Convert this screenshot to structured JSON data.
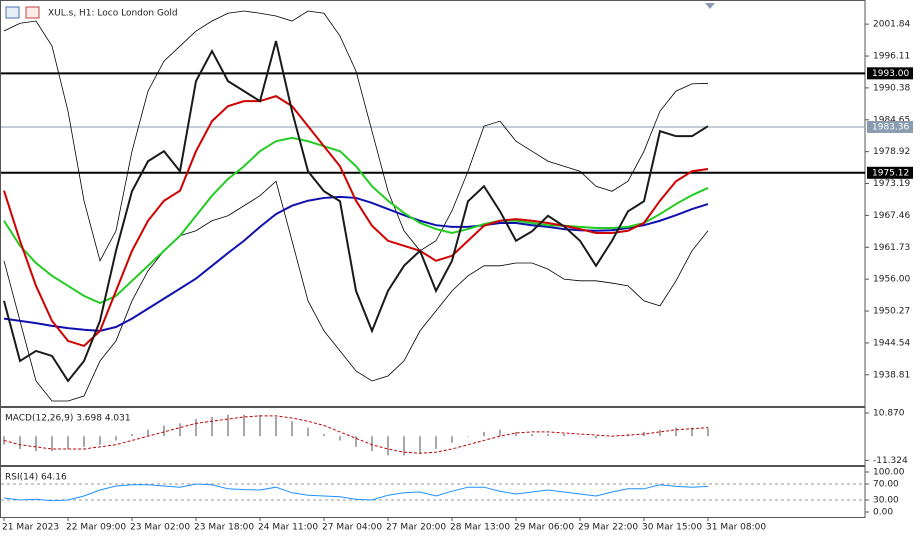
{
  "chart_data": [
    {
      "type": "line",
      "title": "XUL.s, H1: Loco London Gold",
      "categories": [
        "21 Mar 2023",
        null,
        null,
        null,
        "22 Mar 09:00",
        null,
        null,
        null,
        "23 Mar 02:00",
        null,
        null,
        null,
        "23 Mar 18:00",
        null,
        null,
        null,
        "24 Mar 11:00",
        null,
        null,
        null,
        "27 Mar 04:00",
        null,
        null,
        null,
        "27 Mar 20:00",
        null,
        null,
        null,
        "28 Mar 13:00",
        null,
        null,
        null,
        "29 Mar 06:00",
        null,
        null,
        null,
        "29 Mar 22:00",
        null,
        null,
        null,
        "30 Mar 15:00",
        null,
        null,
        null,
        "31 Mar 08:00"
      ],
      "series": [
        {
          "color": "#000000",
          "values": [
            2000.6,
            2002.0,
            2002.4,
            1997.9,
            1986.2,
            1970.1,
            1959.3,
            1964.7,
            1979.0,
            1989.8,
            1995.2,
            1997.9,
            2000.6,
            2002.4,
            2003.8,
            2004.2,
            2003.8,
            2003.3,
            2002.4,
            2004.2,
            2003.8,
            1999.7,
            1993.4,
            1982.6,
            1971.8,
            1964.7,
            1961.1,
            1962.9,
            1968.3,
            1975.4,
            1983.5,
            1984.4,
            1980.8,
            1979.0,
            1977.2,
            1976.3,
            1975.4,
            1972.7,
            1971.8,
            1973.6,
            1979.0,
            1986.2,
            1989.8,
            1991.1,
            1991.2
          ]
        },
        {
          "color": "#000000",
          "values": [
            1959.3,
            1948.5,
            1937.7,
            1934.1,
            1934.1,
            1935.0,
            1941.3,
            1944.9,
            1952.1,
            1957.5,
            1961.1,
            1963.8,
            1964.7,
            1966.5,
            1967.4,
            1969.2,
            1971.0,
            1973.6,
            1962.9,
            1952.1,
            1946.7,
            1943.1,
            1939.5,
            1937.7,
            1938.6,
            1941.3,
            1946.7,
            1950.3,
            1953.9,
            1956.6,
            1958.4,
            1958.4,
            1958.9,
            1958.9,
            1957.8,
            1956.0,
            1955.7,
            1955.7,
            1955.3,
            1954.8,
            1952.1,
            1951.2,
            1955.7,
            1961.1,
            1964.7
          ]
        },
        {
          "color": "#1010b0",
          "values": [
            1948.9,
            1948.5,
            1948.1,
            1947.6,
            1947.2,
            1946.9,
            1946.7,
            1947.4,
            1948.9,
            1950.7,
            1952.5,
            1954.3,
            1956.1,
            1958.4,
            1960.7,
            1962.9,
            1965.4,
            1967.7,
            1969.2,
            1970.1,
            1970.6,
            1970.8,
            1970.6,
            1969.7,
            1968.6,
            1967.5,
            1966.5,
            1965.7,
            1965.4,
            1965.4,
            1965.7,
            1966.1,
            1966.1,
            1965.7,
            1965.4,
            1965.0,
            1964.8,
            1964.7,
            1964.8,
            1965.2,
            1965.7,
            1966.5,
            1967.5,
            1968.6,
            1969.5
          ]
        },
        {
          "color": "#22cc22",
          "values": [
            1966.5,
            1962.0,
            1958.9,
            1956.6,
            1954.8,
            1953.0,
            1951.7,
            1953.0,
            1955.7,
            1958.4,
            1961.1,
            1963.8,
            1967.4,
            1971.0,
            1974.0,
            1976.3,
            1979.0,
            1980.8,
            1981.4,
            1980.8,
            1979.9,
            1979.0,
            1976.3,
            1972.7,
            1970.1,
            1967.9,
            1966.1,
            1965.0,
            1964.3,
            1965.0,
            1965.9,
            1966.5,
            1966.5,
            1966.1,
            1965.7,
            1965.6,
            1965.4,
            1965.2,
            1965.2,
            1965.4,
            1966.1,
            1967.7,
            1969.5,
            1971.1,
            1972.4
          ]
        },
        {
          "color": "#d00000",
          "values": [
            1971.9,
            1962.9,
            1954.8,
            1948.5,
            1944.9,
            1944.0,
            1946.7,
            1953.9,
            1961.1,
            1966.5,
            1970.1,
            1971.9,
            1979.0,
            1984.4,
            1987.1,
            1988.0,
            1988.0,
            1988.9,
            1987.1,
            1983.5,
            1979.9,
            1976.3,
            1970.1,
            1965.6,
            1962.9,
            1962.0,
            1961.1,
            1959.3,
            1960.2,
            1962.9,
            1965.6,
            1966.5,
            1966.8,
            1966.5,
            1966.1,
            1965.6,
            1965.0,
            1964.3,
            1964.3,
            1964.7,
            1966.1,
            1970.1,
            1973.6,
            1975.4,
            1975.8
          ]
        },
        {
          "color": "#1a1a1a",
          "values": [
            1952.1,
            1941.3,
            1943.1,
            1942.2,
            1937.7,
            1941.3,
            1948.5,
            1961.1,
            1971.8,
            1977.2,
            1979.0,
            1975.4,
            1991.6,
            1997.0,
            1991.6,
            1989.8,
            1988.0,
            1998.8,
            1986.2,
            1975.4,
            1971.8,
            1970.0,
            1953.9,
            1946.7,
            1953.9,
            1958.4,
            1961.1,
            1953.9,
            1959.3,
            1970.0,
            1972.7,
            1968.2,
            1962.9,
            1964.6,
            1967.4,
            1965.5,
            1962.9,
            1958.4,
            1962.9,
            1968.2,
            1970.0,
            1982.6,
            1981.7,
            1981.7,
            1983.5
          ]
        }
      ],
      "levels": [
        {
          "value": 1993,
          "label": "1993.00",
          "color": "#000000"
        },
        {
          "value": 1983.36,
          "label": "1983.36",
          "color": "#8a9bb0"
        },
        {
          "value": 1975.12,
          "label": "1975.12",
          "color": "#000000"
        }
      ],
      "ylim": [
        1933.2,
        2006.0
      ],
      "yticks": [
        2001.84,
        1996.11,
        1990.38,
        1984.65,
        1978.92,
        1973.19,
        1967.46,
        1961.73,
        {
          "value": 1956,
          "label": "1956.00"
        },
        1950.27,
        1944.54,
        1938.81
      ]
    },
    {
      "type": "bar",
      "title": "MACD(12,26,9) 3.698 4.031",
      "series": [
        {
          "type": "bar",
          "color": "#a8a8a8",
          "values": [
            -4,
            -6,
            -7,
            -7,
            -6,
            -5,
            -4,
            -2,
            1,
            3,
            5,
            6,
            8,
            9,
            10,
            10,
            10,
            9,
            7,
            4,
            1,
            -2,
            -5,
            -7,
            -9,
            -9,
            -8,
            -6,
            -3,
            0,
            2,
            3,
            2,
            1,
            1,
            1,
            0,
            -1,
            0,
            1,
            2,
            3,
            4,
            4,
            3.7
          ]
        },
        {
          "type": "line",
          "dash": true,
          "color": "#c00000",
          "values": [
            -2,
            -4,
            -5,
            -6,
            -6,
            -6,
            -5,
            -4,
            -2,
            0,
            2,
            4,
            6,
            7,
            8,
            9,
            9.5,
            9.5,
            8.5,
            7,
            5,
            2,
            -1,
            -4,
            -6,
            -7.5,
            -8,
            -7.5,
            -6,
            -4,
            -2,
            0,
            1.5,
            2,
            2,
            1.5,
            1,
            0.5,
            0,
            0.5,
            1,
            2,
            3,
            3.5,
            4.0
          ]
        }
      ],
      "ylim": [
        -13.5,
        13.2
      ],
      "yticks": [
        {
          "value": 10.87,
          "label": "10.870"
        },
        -11.324
      ]
    },
    {
      "type": "line",
      "title": "RSI(14) 64.16",
      "series": [
        {
          "color": "#1e90ff",
          "values": [
            35,
            30,
            32,
            28,
            30,
            40,
            55,
            65,
            68,
            68,
            65,
            62,
            70,
            68,
            58,
            56,
            55,
            62,
            48,
            42,
            40,
            38,
            32,
            30,
            42,
            48,
            50,
            40,
            52,
            62,
            62,
            52,
            45,
            50,
            55,
            50,
            45,
            40,
            50,
            58,
            58,
            68,
            64,
            62,
            64.16
          ]
        }
      ],
      "levels": [
        70,
        30
      ],
      "ylim": [
        -12.5,
        112.5
      ],
      "yticks": [
        {
          "value": 100,
          "label": "100.00"
        },
        {
          "value": 70,
          "label": "70.00"
        },
        {
          "value": 30,
          "label": "30.00"
        },
        {
          "value": 0,
          "label": "0.00"
        }
      ]
    }
  ]
}
